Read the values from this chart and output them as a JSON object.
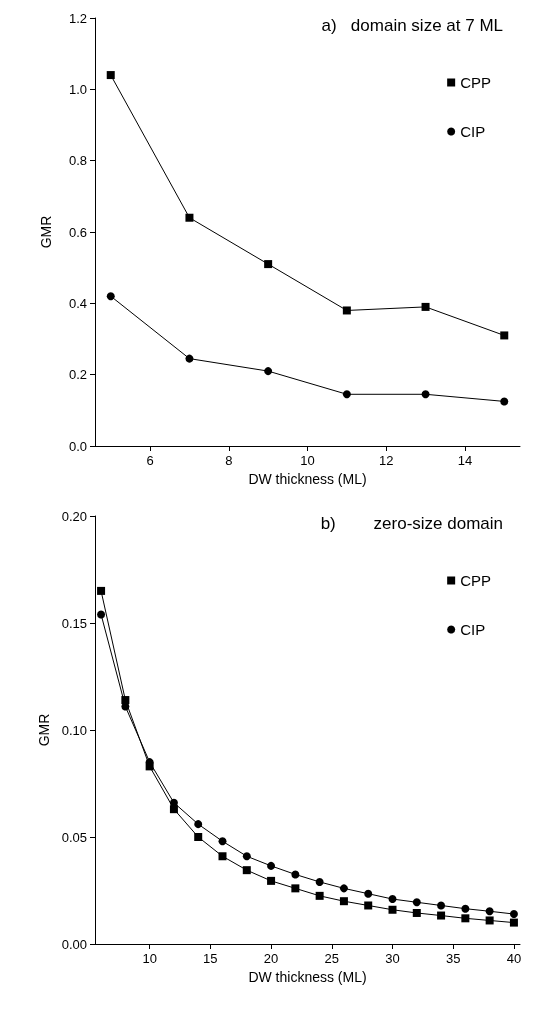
{
  "chart_data": [
    {
      "type": "line",
      "title": "a)   domain size at 7 ML",
      "xlabel": "DW thickness (ML)",
      "ylabel": "GMR",
      "x": [
        5,
        7,
        9,
        11,
        13,
        15
      ],
      "series": [
        {
          "name": "CPP",
          "color": "#000000",
          "marker": "square",
          "values": [
            1.04,
            0.64,
            0.51,
            0.38,
            0.39,
            0.31
          ]
        },
        {
          "name": "CIP",
          "color": "#000000",
          "marker": "circle",
          "values": [
            0.42,
            0.245,
            0.21,
            0.145,
            0.145,
            0.125
          ]
        }
      ],
      "xlim": [
        4.6,
        15.4
      ],
      "xticks": [
        6,
        8,
        10,
        12,
        14
      ],
      "ylim": [
        0,
        1.2
      ],
      "yticks": [
        {
          "value": 0,
          "label": "0.0"
        },
        0.2,
        0.4,
        0.6,
        0.8,
        {
          "value": 1,
          "label": "1.0"
        },
        1.2
      ],
      "legend": "top right",
      "grid": false
    },
    {
      "type": "line",
      "title": "b)        zero-size domain",
      "xlabel": "DW thickness (ML)",
      "ylabel": "GMR",
      "x": [
        6,
        8,
        10,
        12,
        14,
        16,
        18,
        20,
        22,
        24,
        26,
        28,
        30,
        32,
        34,
        36,
        38,
        40
      ],
      "series": [
        {
          "name": "CPP",
          "color": "#000000",
          "marker": "square",
          "values": [
            0.165,
            0.114,
            0.083,
            0.063,
            0.05,
            0.041,
            0.0345,
            0.0295,
            0.026,
            0.0225,
            0.02,
            0.018,
            0.016,
            0.0145,
            0.0133,
            0.012,
            0.011,
            0.01
          ]
        },
        {
          "name": "CIP",
          "color": "#000000",
          "marker": "circle",
          "values": [
            0.154,
            0.111,
            0.085,
            0.066,
            0.056,
            0.048,
            0.041,
            0.0365,
            0.0325,
            0.029,
            0.026,
            0.0235,
            0.021,
            0.0195,
            0.018,
            0.0165,
            0.0153,
            0.014
          ]
        }
      ],
      "xlim": [
        5.5,
        40.5
      ],
      "xticks": [
        10,
        15,
        20,
        25,
        30,
        35,
        40
      ],
      "ylim": [
        0,
        0.2
      ],
      "yticks": [
        {
          "value": 0,
          "label": "0.00"
        },
        0.05,
        {
          "value": 0.1,
          "label": "0.10"
        },
        0.15,
        {
          "value": 0.2,
          "label": "0.20"
        }
      ],
      "legend": "top right",
      "grid": false
    }
  ]
}
